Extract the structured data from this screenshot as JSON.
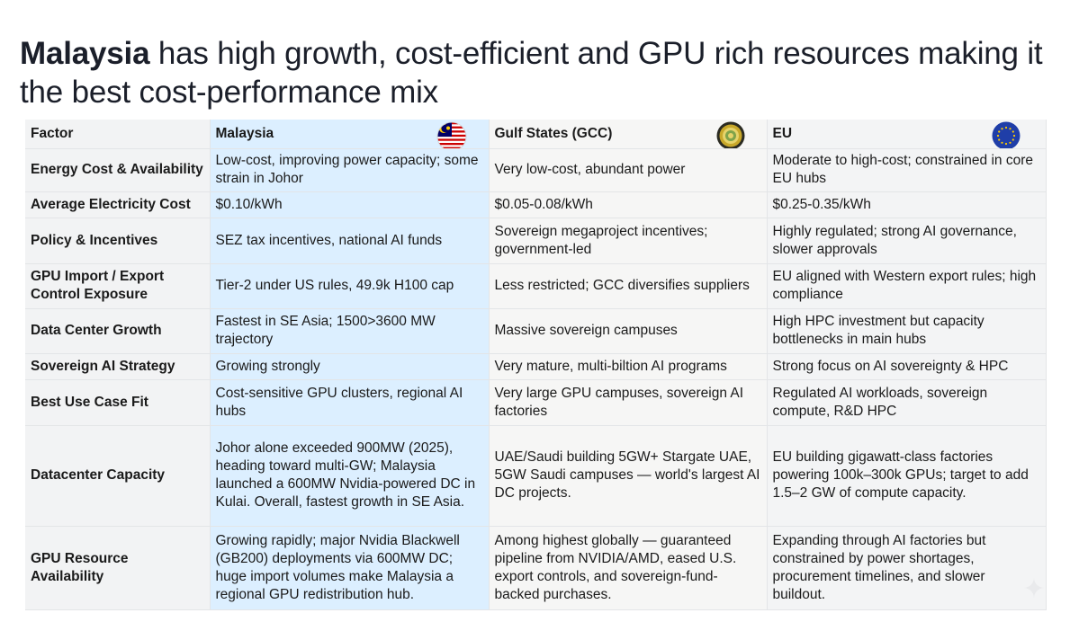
{
  "title": {
    "bold": "Malaysia",
    "rest": " has high growth, cost-efficient and GPU rich resources making it the best cost-performance mix"
  },
  "columns": [
    "Factor",
    "Malaysia",
    "Gulf States (GCC)",
    "EU"
  ],
  "icons": {
    "malaysia": "malaysia-flag-icon",
    "gcc": "gcc-emblem-icon",
    "eu": "eu-flag-icon"
  },
  "colors": {
    "malaysia_col": "#dcefff",
    "table_bg": "#f4f5f6",
    "title": "#1b1f2a"
  },
  "rows": [
    {
      "factor": "Energy Cost & Availability",
      "malaysia": "Low-cost, improving power capacity; some strain in Johor",
      "gcc": "Very low-cost, abundant power",
      "eu": "Moderate to high-cost; constrained in core EU hubs"
    },
    {
      "factor": "Average Electricity Cost",
      "malaysia": "$0.10/kWh",
      "gcc": "$0.05-0.08/kWh",
      "eu": "$0.25-0.35/kWh"
    },
    {
      "factor": "Policy & Incentives",
      "malaysia": "SEZ tax incentives, national AI funds",
      "gcc": "Sovereign megaproject incentives; government-led",
      "eu": "Highly regulated; strong AI governance, slower approvals"
    },
    {
      "factor": "GPU Import / Export Control Exposure",
      "malaysia": "Tier-2 under US rules, 49.9k H100 cap",
      "gcc": "Less restricted; GCC diversifies suppliers",
      "eu": "EU aligned with Western export rules; high compliance"
    },
    {
      "factor": "Data Center Growth",
      "malaysia": "Fastest in SE Asia; 1500>3600 MW trajectory",
      "gcc": "Massive sovereign campuses",
      "eu": "High HPC investment but capacity bottlenecks in main hubs"
    },
    {
      "factor": "Sovereign AI Strategy",
      "malaysia": "Growing strongly",
      "gcc": "Very mature, multi-biltion AI programs",
      "eu": "Strong focus on AI sovereignty & HPC"
    },
    {
      "factor": "Best Use Case Fit",
      "malaysia": "Cost-sensitive GPU clusters, regional AI hubs",
      "gcc": "Very large GPU campuses, sovereign AI factories",
      "eu": "Regulated AI workloads, sovereign compute, R&D HPC"
    },
    {
      "factor": "Datacenter Capacity",
      "malaysia": "Johor alone exceeded 900MW (2025), heading toward multi-GW; Malaysia launched a 600MW Nvidia-powered DC in Kulai. Overall, fastest growth in SE Asia.",
      "gcc": "UAE/Saudi building 5GW+ Stargate UAE, 5GW Saudi campuses — world's largest AI DC projects.",
      "eu": "EU building gigawatt-class factories powering 100k–300k GPUs; target to add 1.5–2 GW of compute capacity."
    },
    {
      "factor": "GPU Resource Availability",
      "malaysia": "Growing rapidly; major Nvidia Blackwell (GB200) deployments via 600MW DC; huge import volumes make Malaysia a regional GPU redistribution hub.",
      "gcc": "Among highest globally — guaranteed pipeline from NVIDIA/AMD, eased U.S. export controls, and sovereign-fund-backed purchases.",
      "eu": "Expanding through AI factories but constrained by power shortages, procurement timelines, and slower buildout."
    }
  ]
}
